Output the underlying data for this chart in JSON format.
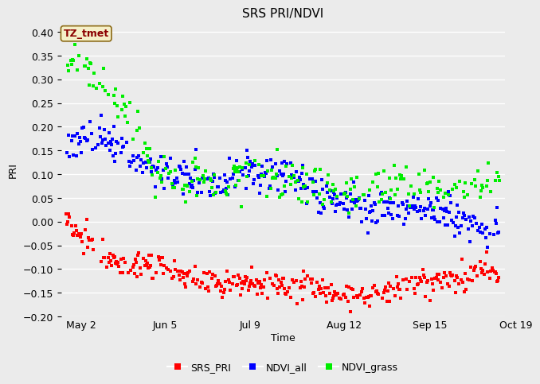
{
  "title": "SRS PRI/NDVI",
  "xlabel": "Time",
  "ylabel": "PRI",
  "ylim": [
    -0.2,
    0.42
  ],
  "yticks": [
    -0.2,
    -0.15,
    -0.1,
    -0.05,
    0.0,
    0.05,
    0.1,
    0.15,
    0.2,
    0.25,
    0.3,
    0.35,
    0.4
  ],
  "xtick_labels": [
    "May 2",
    "Jun 5",
    "Jul 9",
    "Aug 12",
    "Sep 15",
    "Oct 19"
  ],
  "bg_color": "#ebebeb",
  "plot_bg_color": "#ebebeb",
  "grid_color": "#ffffff",
  "annotation_text": "TZ_tmet",
  "annotation_color": "#8B0000",
  "annotation_bg": "#f5f0c8",
  "annotation_border": "#8B6914",
  "colors": {
    "SRS_PRI": "#ff0000",
    "NDVI_all": "#0000ff",
    "NDVI_grass": "#00ee00"
  },
  "marker_size": 3.0,
  "line_width": 0.0,
  "title_fontsize": 11,
  "axis_fontsize": 9,
  "tick_fontsize": 9
}
